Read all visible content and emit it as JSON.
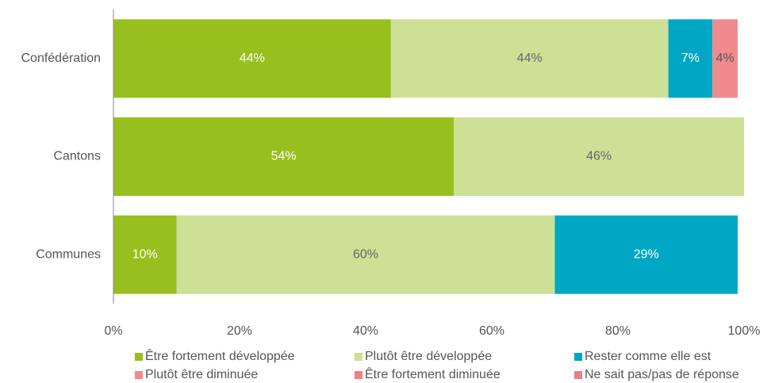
{
  "chart_data": {
    "type": "bar",
    "orientation": "horizontal",
    "stacked": true,
    "categories": [
      "Confédération",
      "Cantons",
      "Communes"
    ],
    "series": [
      {
        "name": "Être fortement développée",
        "color": "#97bf1e",
        "label_color": "#ffffff",
        "values": [
          44,
          54,
          10
        ],
        "value_labels": [
          "44%",
          "54%",
          "10%"
        ]
      },
      {
        "name": "Plutôt être développée",
        "color": "#cde096",
        "label_color": "#666666",
        "values": [
          44,
          46,
          60
        ],
        "value_labels": [
          "44%",
          "46%",
          "60%"
        ]
      },
      {
        "name": "Rester comme elle est",
        "color": "#00a7c4",
        "label_color": "#ffffff",
        "values": [
          7,
          null,
          29
        ],
        "value_labels": [
          "7%",
          null,
          "29%"
        ]
      },
      {
        "name": "Plutôt être diminuée",
        "color": "#f08a8e",
        "label_color": "#555555",
        "values": [
          4,
          null,
          null
        ],
        "value_labels": [
          "4%",
          null,
          null
        ]
      },
      {
        "name": "Être fortement diminuée",
        "color": "#ee8088",
        "label_color": "#555555",
        "values": [
          null,
          null,
          null
        ],
        "value_labels": [
          null,
          null,
          null
        ]
      },
      {
        "name": "Ne sait pas/pas de réponse",
        "color": "#ec7c86",
        "label_color": "#555555",
        "values": [
          null,
          null,
          null
        ],
        "value_labels": [
          null,
          null,
          null
        ]
      }
    ],
    "xlim": [
      0,
      100
    ],
    "xticks": [
      {
        "value": 0,
        "label": "0%"
      },
      {
        "value": 20,
        "label": "20%"
      },
      {
        "value": 40,
        "label": "40%"
      },
      {
        "value": 60,
        "label": "60%"
      },
      {
        "value": 80,
        "label": "80%"
      },
      {
        "value": 100,
        "label": "100%"
      }
    ],
    "grid": false,
    "legend": "bottom"
  }
}
